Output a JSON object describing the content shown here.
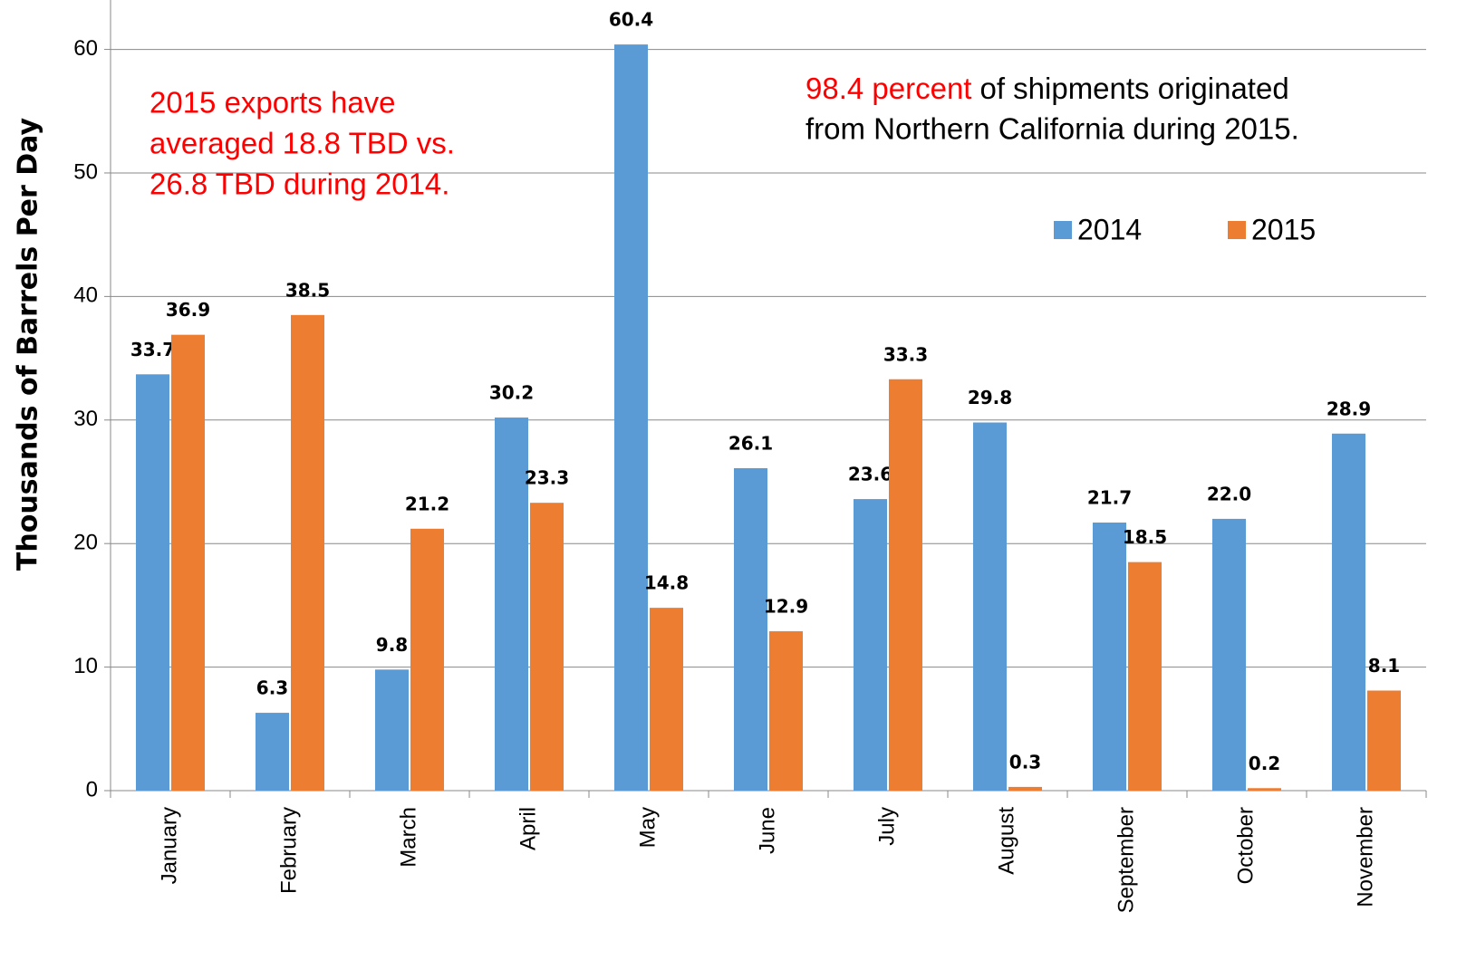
{
  "chart_data": {
    "type": "bar",
    "y_label": "Thousands of Barrels Per Day",
    "annotations": [
      {
        "lines": [
          "2015 exports have",
          "averaged 18.8 TBD vs.",
          "26.8 TBD during 2014."
        ],
        "color": "#ff0000"
      },
      {
        "highlight": "98.4 percent",
        "lines": [
          "of shipments originated",
          "from Northern California during 2015."
        ],
        "color": "#000000",
        "highlight_color": "#ff0000"
      }
    ],
    "categories": [
      "January",
      "February",
      "March",
      "April",
      "May",
      "June",
      "July",
      "August",
      "September",
      "October",
      "November"
    ],
    "series": [
      {
        "name": "2014",
        "color": "#5b9bd5",
        "values": [
          33.7,
          6.3,
          9.8,
          30.2,
          60.4,
          26.1,
          23.6,
          29.8,
          21.7,
          22.0,
          28.9
        ],
        "value_labels": [
          "33.7",
          "6.3",
          "9.8",
          "30.2",
          "60.4",
          "26.1",
          "23.6",
          "29.8",
          "21.7",
          "22.0",
          "28.9"
        ]
      },
      {
        "name": "2015",
        "color": "#ed7d31",
        "values": [
          36.9,
          38.5,
          21.2,
          23.3,
          14.8,
          12.9,
          33.3,
          0.3,
          18.5,
          0.2,
          8.1
        ],
        "value_labels": [
          "36.9",
          "38.5",
          "21.2",
          "23.3",
          "14.8",
          "12.9",
          "33.3",
          "0.3",
          "18.5",
          "0.2",
          "8.1"
        ]
      }
    ],
    "ylim": [
      0,
      64
    ],
    "yticks": [
      0,
      10,
      20,
      30,
      40,
      50,
      60
    ],
    "grid": true,
    "legend": "upper right"
  }
}
